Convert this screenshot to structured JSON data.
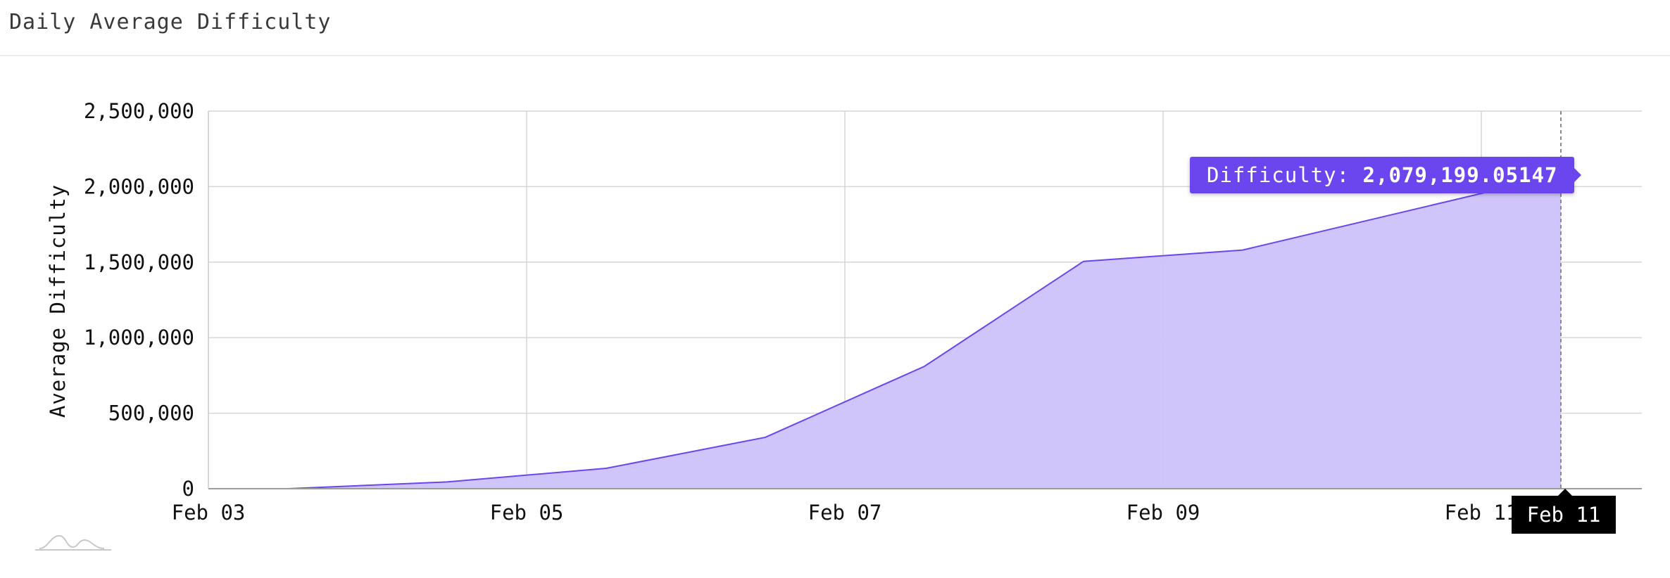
{
  "header": {
    "title": "Daily Average Difficulty"
  },
  "tooltip": {
    "label": "Difficulty:",
    "value": "2,079,199.05147"
  },
  "crosshair": {
    "x_label": "Feb 11"
  },
  "icons": {
    "logo": "chart-logo-icon"
  },
  "colors": {
    "area_fill": "#cdc2fb",
    "area_line": "#6b46ee",
    "tooltip_bg": "#6b46ee",
    "grid": "#d6d6d6"
  },
  "chart_data": {
    "type": "area",
    "title": "",
    "ylabel": "Average Difficulty",
    "xlabel": "",
    "x_tick_labels": [
      "Feb 03",
      "Feb 05",
      "Feb 07",
      "Feb 09",
      "Feb 11"
    ],
    "y_tick_labels": [
      "0",
      "500,000",
      "1,000,000",
      "1,500,000",
      "2,000,000",
      "2,500,000"
    ],
    "xlim": [
      "Feb 03",
      "Feb 12"
    ],
    "ylim": [
      0,
      2500000
    ],
    "grid": true,
    "series": [
      {
        "x": [
          "2025-02-03 12:00",
          "2025-02-04 12:00",
          "2025-02-05 12:00",
          "2025-02-06 12:00",
          "2025-02-07 12:00",
          "2025-02-08 12:00",
          "2025-02-09 12:00",
          "2025-02-10 12:00",
          "2025-02-11 12:00"
        ],
        "values": [
          0,
          45000,
          135000,
          340000,
          810000,
          1505000,
          1580000,
          1830000,
          2079199.05147
        ]
      }
    ]
  }
}
